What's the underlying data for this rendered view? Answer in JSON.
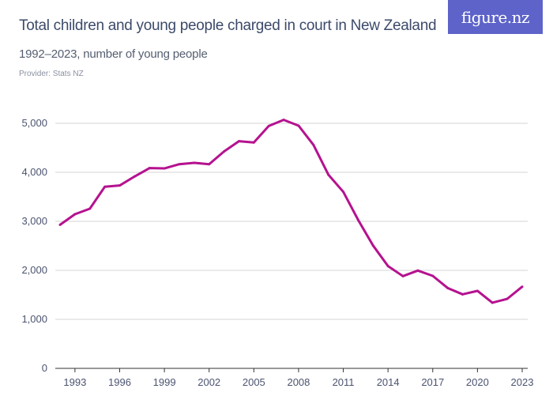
{
  "header": {
    "title": "Total children and young people charged in court in New Zealand",
    "subtitle": "1992–2023, number of young people",
    "provider": "Provider: Stats NZ",
    "logo": "figure.nz"
  },
  "chart_data": {
    "type": "line",
    "title": "Total children and young people charged in court in New Zealand",
    "subtitle": "1992–2023, number of young people",
    "xlabel": "",
    "ylabel": "",
    "ylim": [
      0,
      5000
    ],
    "xlim": [
      1992,
      2023
    ],
    "grid": true,
    "line_color": "#b5128f",
    "y_ticks": [
      "0",
      "1,000",
      "2,000",
      "3,000",
      "4,000",
      "5,000"
    ],
    "x_ticks": [
      "1993",
      "1996",
      "1999",
      "2002",
      "2005",
      "2008",
      "2011",
      "2014",
      "2017",
      "2020",
      "2023"
    ],
    "x": [
      1992,
      1993,
      1994,
      1995,
      1996,
      1997,
      1998,
      1999,
      2000,
      2001,
      2002,
      2003,
      2004,
      2005,
      2006,
      2007,
      2008,
      2009,
      2010,
      2011,
      2012,
      2013,
      2014,
      2015,
      2016,
      2017,
      2018,
      2019,
      2020,
      2021,
      2022,
      2023
    ],
    "series": [
      {
        "values": [
          2930,
          3145,
          3258,
          3705,
          3731,
          3915,
          4086,
          4080,
          4166,
          4194,
          4166,
          4425,
          4635,
          4608,
          4946,
          5070,
          4952,
          4560,
          3952,
          3602,
          3027,
          2505,
          2086,
          1882,
          1995,
          1887,
          1640,
          1511,
          1581,
          1339,
          1419,
          1666
        ]
      }
    ]
  }
}
